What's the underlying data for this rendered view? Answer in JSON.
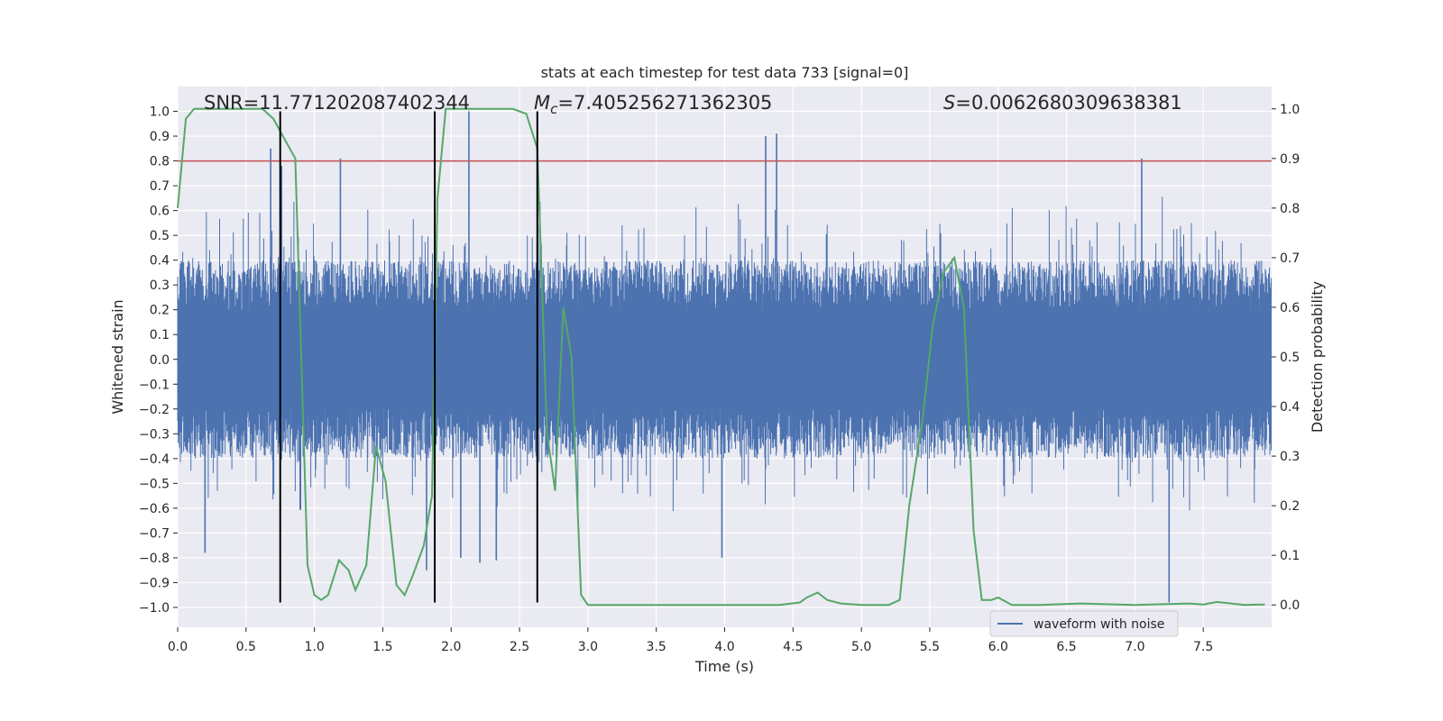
{
  "chart_data": {
    "type": "line",
    "title": "stats at each timestep for test data 733 [signal=0]",
    "xlabel": "Time (s)",
    "ylabel": "Whitened strain",
    "ylabel_right": "Detection probability",
    "xlim": [
      0,
      8
    ],
    "ylim": [
      -1.08,
      1.1
    ],
    "ylim_right": [
      -0.045,
      1.045
    ],
    "x_ticks": [
      0,
      0.5,
      1,
      1.5,
      2,
      2.5,
      3,
      3.5,
      4,
      4.5,
      5,
      5.5,
      6,
      6.5,
      7,
      7.5
    ],
    "x_tick_labels": [
      "0.0",
      "0.5",
      "1.0",
      "1.5",
      "2.0",
      "2.5",
      "3.0",
      "3.5",
      "4.0",
      "4.5",
      "5.0",
      "5.5",
      "6.0",
      "6.5",
      "7.0",
      "7.5"
    ],
    "y_ticks": [
      -1,
      -0.9,
      -0.8,
      -0.7,
      -0.6,
      -0.5,
      -0.4,
      -0.3,
      -0.2,
      -0.1,
      0,
      0.1,
      0.2,
      0.3,
      0.4,
      0.5,
      0.6,
      0.7,
      0.8,
      0.9,
      1
    ],
    "y_tick_labels": [
      "−1.0",
      "−0.9",
      "−0.8",
      "−0.7",
      "−0.6",
      "−0.5",
      "−0.4",
      "−0.3",
      "−0.2",
      "−0.1",
      "0.0",
      "0.1",
      "0.2",
      "0.3",
      "0.4",
      "0.5",
      "0.6",
      "0.7",
      "0.8",
      "0.9",
      "1.0"
    ],
    "y_ticks_right": [
      0,
      0.1,
      0.2,
      0.3,
      0.4,
      0.5,
      0.6,
      0.7,
      0.8,
      0.9,
      1
    ],
    "y_tick_labels_right": [
      "0.0",
      "0.1",
      "0.2",
      "0.3",
      "0.4",
      "0.5",
      "0.6",
      "0.7",
      "0.8",
      "0.9",
      "1.0"
    ],
    "annotations": {
      "snr": "SNR=11.771202087402344",
      "mc_symbol": "M",
      "mc_sub": "c",
      "mc_value": "=7.405256271362305",
      "s_symbol": "S",
      "s_value": "=0.0062680309638381"
    },
    "threshold": 0.8,
    "vertical_lines_x": [
      0.75,
      1.88,
      2.63
    ],
    "vertical_lines_range": [
      -0.98,
      1.0
    ],
    "waveform": {
      "name": "waveform with noise",
      "color": "#4c72b0",
      "band_abs": 0.2,
      "noise_seed": 733,
      "notable_peaks": [
        {
          "x": 0.68,
          "y": 0.85
        },
        {
          "x": 0.76,
          "y": 0.78
        },
        {
          "x": 1.19,
          "y": 0.81
        },
        {
          "x": 2.13,
          "y": 1.0
        },
        {
          "x": 2.63,
          "y": 1.0
        },
        {
          "x": 4.3,
          "y": 0.9
        },
        {
          "x": 4.38,
          "y": 0.91
        },
        {
          "x": 7.05,
          "y": 0.81
        },
        {
          "x": 1.82,
          "y": -0.85
        },
        {
          "x": 0.2,
          "y": -0.78
        },
        {
          "x": 2.07,
          "y": -0.8
        },
        {
          "x": 2.21,
          "y": -0.82
        },
        {
          "x": 2.33,
          "y": -0.81
        },
        {
          "x": 3.98,
          "y": -0.8
        },
        {
          "x": 7.25,
          "y": -0.98
        }
      ]
    },
    "probability": {
      "name": "detection probability",
      "color": "#55a868",
      "x": [
        0,
        0.06,
        0.12,
        0.25,
        0.5,
        0.62,
        0.7,
        0.8,
        0.86,
        0.95,
        1.0,
        1.05,
        1.1,
        1.18,
        1.25,
        1.3,
        1.38,
        1.45,
        1.52,
        1.6,
        1.66,
        1.72,
        1.8,
        1.86,
        1.9,
        1.96,
        2.0,
        2.2,
        2.45,
        2.55,
        2.63,
        2.7,
        2.76,
        2.82,
        2.88,
        2.95,
        3.0,
        3.2,
        3.5,
        4.0,
        4.4,
        4.55,
        4.6,
        4.68,
        4.75,
        4.85,
        5.0,
        5.2,
        5.28,
        5.35,
        5.45,
        5.52,
        5.6,
        5.68,
        5.75,
        5.82,
        5.88,
        5.95,
        6.0,
        6.1,
        6.3,
        6.6,
        7.0,
        7.4,
        7.5,
        7.6,
        7.8,
        7.95
      ],
      "y": [
        0.8,
        0.98,
        1.0,
        1.0,
        1.0,
        1.0,
        0.98,
        0.93,
        0.9,
        0.08,
        0.02,
        0.01,
        0.02,
        0.09,
        0.07,
        0.03,
        0.08,
        0.32,
        0.25,
        0.04,
        0.02,
        0.06,
        0.12,
        0.22,
        0.82,
        1.0,
        1.0,
        1.0,
        1.0,
        0.99,
        0.92,
        0.35,
        0.23,
        0.6,
        0.5,
        0.02,
        0.0,
        0.0,
        0.0,
        0.0,
        0.0,
        0.005,
        0.015,
        0.025,
        0.01,
        0.003,
        0.0,
        0.0,
        0.01,
        0.2,
        0.38,
        0.56,
        0.67,
        0.7,
        0.6,
        0.15,
        0.01,
        0.01,
        0.015,
        0.0,
        0.0,
        0.003,
        0.0,
        0.003,
        0.001,
        0.006,
        0.0,
        0.001
      ]
    },
    "legend": {
      "position": "lower right",
      "entries": [
        {
          "label": "waveform with noise",
          "color": "#4c72b0"
        }
      ]
    },
    "colors": {
      "background": "#eaeaf2",
      "grid": "#ffffff",
      "threshold_line": "#c44e52",
      "vertical_lines": "#000000"
    }
  }
}
